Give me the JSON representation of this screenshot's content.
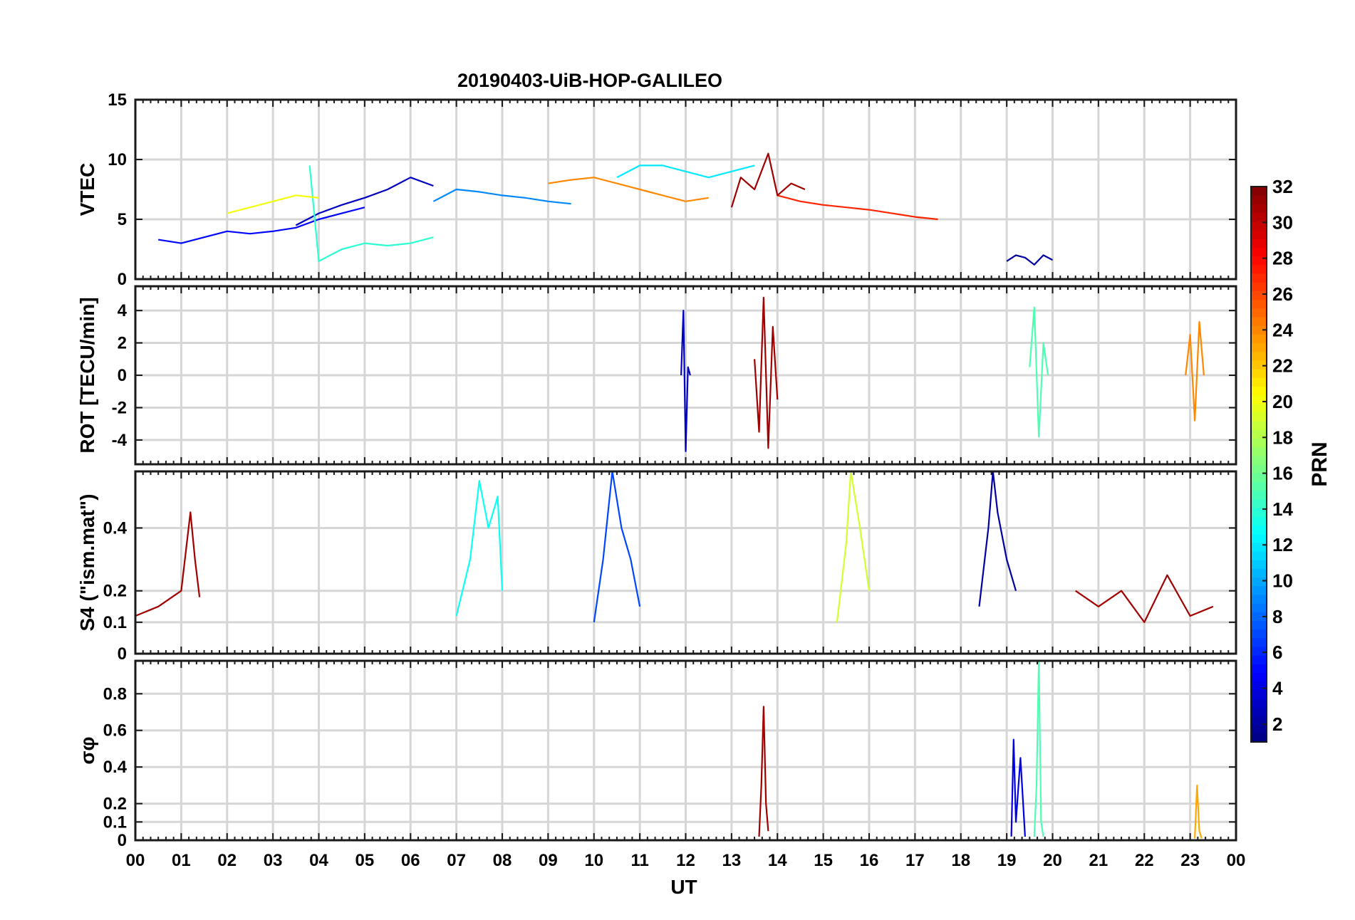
{
  "figure": {
    "title": "20190403-UiB-HOP-GALILEO",
    "xlabel": "UT"
  },
  "chart_data": [
    {
      "type": "line",
      "panel": "VTEC",
      "ylabel": "VTEC",
      "ylim": [
        0,
        15
      ],
      "yticks": [
        "0",
        "5",
        "10",
        "15"
      ],
      "ytick_values": [
        0,
        5,
        10,
        15
      ],
      "xlim": [
        0,
        24
      ],
      "series": [
        {
          "name": "PRN 2",
          "prn": 2,
          "x": [
            19.0,
            19.2,
            19.4,
            19.6,
            19.8,
            20.0
          ],
          "y": [
            1.5,
            2.0,
            1.8,
            1.2,
            2.0,
            1.6
          ]
        },
        {
          "name": "PRN 3",
          "prn": 3,
          "x": [
            3.5,
            4.0,
            4.5,
            5.0,
            5.5,
            6.0,
            6.5
          ],
          "y": [
            4.5,
            5.5,
            6.2,
            6.8,
            7.5,
            8.5,
            7.8
          ]
        },
        {
          "name": "PRN 5",
          "prn": 5,
          "x": [
            0.5,
            1.0,
            1.5,
            2.0,
            2.5,
            3.0,
            3.5,
            4.0,
            4.5,
            5.0
          ],
          "y": [
            3.3,
            3.0,
            3.5,
            4.0,
            3.8,
            4.0,
            4.3,
            5.0,
            5.5,
            6.0
          ]
        },
        {
          "name": "PRN 9",
          "prn": 9,
          "x": [
            6.5,
            7.0,
            7.5,
            8.0,
            8.5,
            9.0,
            9.5
          ],
          "y": [
            6.5,
            7.5,
            7.3,
            7.0,
            6.8,
            6.5,
            6.3
          ]
        },
        {
          "name": "PRN 12",
          "prn": 12,
          "x": [
            10.5,
            11.0,
            11.5,
            12.0,
            12.5,
            13.0,
            13.5
          ],
          "y": [
            8.5,
            9.5,
            9.5,
            9.0,
            8.5,
            9.0,
            9.5
          ]
        },
        {
          "name": "PRN 14",
          "prn": 14,
          "x": [
            3.8,
            4.0,
            4.5,
            5.0,
            5.5,
            6.0,
            6.5
          ],
          "y": [
            9.5,
            1.5,
            2.5,
            3.0,
            2.8,
            3.0,
            3.5
          ]
        },
        {
          "name": "PRN 20",
          "prn": 20,
          "x": [
            2.0,
            2.5,
            3.0,
            3.5,
            4.0
          ],
          "y": [
            5.5,
            6.0,
            6.5,
            7.0,
            6.8
          ]
        },
        {
          "name": "PRN 24",
          "prn": 24,
          "x": [
            9.0,
            9.5,
            10.0,
            10.5,
            11.0,
            11.5,
            12.0,
            12.5
          ],
          "y": [
            8.0,
            8.3,
            8.5,
            8.0,
            7.5,
            7.0,
            6.5,
            6.8
          ]
        },
        {
          "name": "PRN 27",
          "prn": 27,
          "x": [
            14.0,
            14.5,
            15.0,
            15.5,
            16.0,
            16.5,
            17.0,
            17.5
          ],
          "y": [
            7.0,
            6.5,
            6.2,
            6.0,
            5.8,
            5.5,
            5.2,
            5.0
          ]
        },
        {
          "name": "PRN 31",
          "prn": 31,
          "x": [
            13.0,
            13.2,
            13.5,
            13.8,
            14.0,
            14.3,
            14.6
          ],
          "y": [
            6.0,
            8.5,
            7.5,
            10.5,
            7.0,
            8.0,
            7.5
          ]
        }
      ]
    },
    {
      "type": "line",
      "panel": "ROT",
      "ylabel": "ROT [TECU/min]",
      "ylim": [
        -5.5,
        5.5
      ],
      "yticks": [
        "-4",
        "-2",
        "0",
        "2",
        "4"
      ],
      "ytick_values": [
        -4,
        -2,
        0,
        2,
        4
      ],
      "xlim": [
        0,
        24
      ],
      "series": [
        {
          "name": "PRN 3",
          "prn": 3,
          "x": [
            11.9,
            11.95,
            12.0,
            12.05,
            12.1
          ],
          "y": [
            0.0,
            4.0,
            -4.7,
            0.5,
            0.0
          ]
        },
        {
          "name": "PRN 15",
          "prn": 15,
          "x": [
            19.5,
            19.6,
            19.7,
            19.8,
            19.9
          ],
          "y": [
            0.5,
            4.2,
            -3.8,
            2.0,
            0.0
          ]
        },
        {
          "name": "PRN 31",
          "prn": 31,
          "x": [
            13.5,
            13.6,
            13.7,
            13.8,
            13.9,
            14.0
          ],
          "y": [
            1.0,
            -3.5,
            4.8,
            -4.5,
            3.0,
            -1.5
          ]
        },
        {
          "name": "PRN 24",
          "prn": 24,
          "x": [
            22.9,
            23.0,
            23.1,
            23.2,
            23.3
          ],
          "y": [
            0.0,
            2.5,
            -2.8,
            3.3,
            0.0
          ]
        }
      ]
    },
    {
      "type": "line",
      "panel": "S4",
      "ylabel": "S4 (\"ism.mat\")",
      "ylim": [
        0,
        0.58
      ],
      "yticks": [
        "0",
        "0.1",
        "0.2",
        "0.4"
      ],
      "ytick_values": [
        0,
        0.1,
        0.2,
        0.4
      ],
      "xlim": [
        0,
        24
      ],
      "series": [
        {
          "name": "PRN 31",
          "prn": 31,
          "x": [
            0.0,
            0.5,
            1.0,
            1.2,
            1.3,
            1.4
          ],
          "y": [
            0.12,
            0.15,
            0.2,
            0.45,
            0.3,
            0.18
          ]
        },
        {
          "name": "PRN 13",
          "prn": 13,
          "x": [
            7.0,
            7.3,
            7.5,
            7.7,
            7.9,
            8.0
          ],
          "y": [
            0.12,
            0.3,
            0.55,
            0.4,
            0.5,
            0.2
          ]
        },
        {
          "name": "PRN 7",
          "prn": 7,
          "x": [
            10.0,
            10.2,
            10.4,
            10.6,
            10.8,
            11.0
          ],
          "y": [
            0.1,
            0.3,
            0.58,
            0.4,
            0.3,
            0.15
          ]
        },
        {
          "name": "PRN 19",
          "prn": 19,
          "x": [
            15.3,
            15.5,
            15.6,
            15.8,
            16.0
          ],
          "y": [
            0.1,
            0.35,
            0.58,
            0.4,
            0.2
          ]
        },
        {
          "name": "PRN 2",
          "prn": 2,
          "x": [
            18.4,
            18.6,
            18.7,
            18.8,
            19.0,
            19.2
          ],
          "y": [
            0.15,
            0.4,
            0.58,
            0.45,
            0.3,
            0.2
          ]
        },
        {
          "name": "PRN 31",
          "prn": 31,
          "x": [
            20.5,
            21.0,
            21.5,
            22.0,
            22.5,
            23.0,
            23.5
          ],
          "y": [
            0.2,
            0.15,
            0.2,
            0.1,
            0.25,
            0.12,
            0.15
          ]
        }
      ]
    },
    {
      "type": "line",
      "panel": "sigma_phi",
      "ylabel": "σφ",
      "ylim": [
        0,
        0.98
      ],
      "yticks": [
        "0",
        "0.1",
        "0.2",
        "0.4",
        "0.6",
        "0.8"
      ],
      "ytick_values": [
        0,
        0.1,
        0.2,
        0.4,
        0.6,
        0.8
      ],
      "xlim": [
        0,
        24
      ],
      "series": [
        {
          "name": "PRN 31",
          "prn": 31,
          "x": [
            13.6,
            13.65,
            13.7,
            13.75,
            13.8
          ],
          "y": [
            0.02,
            0.3,
            0.73,
            0.2,
            0.05
          ]
        },
        {
          "name": "PRN 15",
          "prn": 15,
          "x": [
            19.6,
            19.65,
            19.7,
            19.75,
            19.8
          ],
          "y": [
            0.02,
            0.3,
            0.98,
            0.1,
            0.02
          ]
        },
        {
          "name": "PRN 4",
          "prn": 4,
          "x": [
            19.1,
            19.15,
            19.2,
            19.3,
            19.4
          ],
          "y": [
            0.02,
            0.55,
            0.1,
            0.45,
            0.02
          ]
        },
        {
          "name": "PRN 23",
          "prn": 23,
          "x": [
            23.1,
            23.15,
            23.2,
            23.25
          ],
          "y": [
            0.01,
            0.3,
            0.05,
            0.01
          ]
        }
      ]
    }
  ],
  "xaxis": {
    "ticklabels": [
      "00",
      "01",
      "02",
      "03",
      "04",
      "05",
      "06",
      "07",
      "08",
      "09",
      "10",
      "11",
      "12",
      "13",
      "14",
      "15",
      "16",
      "17",
      "18",
      "19",
      "20",
      "21",
      "22",
      "23",
      "00"
    ]
  },
  "colorbar": {
    "label": "PRN",
    "range": [
      1,
      32
    ],
    "ticks": [
      "2",
      "4",
      "6",
      "8",
      "10",
      "12",
      "14",
      "16",
      "18",
      "20",
      "22",
      "24",
      "26",
      "28",
      "30",
      "32"
    ],
    "tick_values": [
      2,
      4,
      6,
      8,
      10,
      12,
      14,
      16,
      18,
      20,
      22,
      24,
      26,
      28,
      30,
      32
    ],
    "colormap": "jet"
  }
}
